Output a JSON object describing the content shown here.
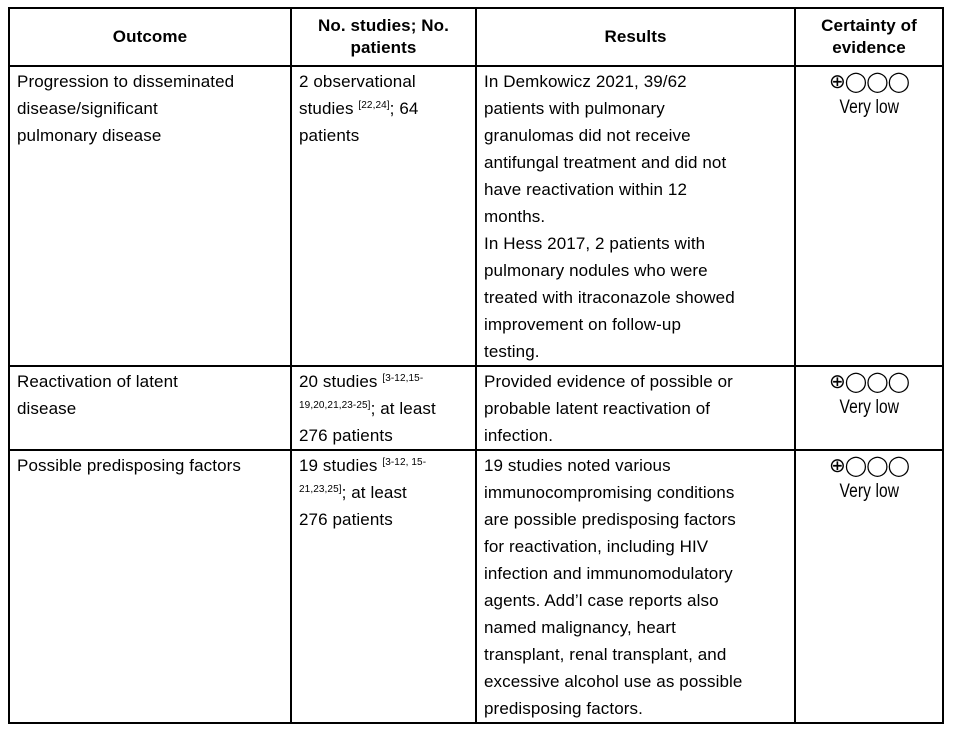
{
  "headers": [
    "Outcome",
    "No. studies; No. patients",
    "Results",
    "Certainty of evidence"
  ],
  "rows": [
    {
      "outcome": [
        "Progression to disseminated",
        "disease/significant",
        "pulmonary disease"
      ],
      "studies": {
        "l1": "2 observational",
        "l2a": "studies ",
        "sup": "[22,24]",
        "l2b": "; 64",
        "l3": "patients"
      },
      "results": [
        "In Demkowicz 2021, 39/62",
        "patients with pulmonary",
        "granulomas did not receive",
        "antifungal treatment and did not",
        "have reactivation within 12",
        "months.",
        "In Hess 2017, 2 patients with",
        "pulmonary nodules who were",
        "treated with itraconazole showed",
        "improvement on follow-up",
        "testing."
      ],
      "certainty_symbol": "⊕◯◯◯",
      "certainty": "Very low"
    },
    {
      "outcome": [
        "Reactivation of latent",
        "disease"
      ],
      "studies": {
        "l1a": "20 studies ",
        "sup1": "[3-12,15-",
        "sup2": "19,20,21,23-25]",
        "l2b": "; at least",
        "l3": "276 patients"
      },
      "results": [
        "Provided evidence of possible or",
        "probable latent reactivation of",
        "infection."
      ],
      "certainty_symbol": "⊕◯◯◯",
      "certainty": "Very low"
    },
    {
      "outcome": [
        "Possible predisposing factors"
      ],
      "studies": {
        "l1a": "19 studies ",
        "sup1": "[3-12, 15-",
        "sup2": "21,23,25]",
        "l2b": "; at least",
        "l3": "276 patients"
      },
      "results": [
        "19 studies noted various",
        "immunocompromising conditions",
        "are possible predisposing factors",
        "for reactivation, including HIV",
        "infection and immunomodulatory",
        "agents. Add’l case reports also",
        "named malignancy, heart",
        "transplant, renal transplant, and",
        "excessive alcohol use as possible",
        "predisposing factors."
      ],
      "certainty_symbol": "⊕◯◯◯",
      "certainty": "Very low"
    }
  ]
}
